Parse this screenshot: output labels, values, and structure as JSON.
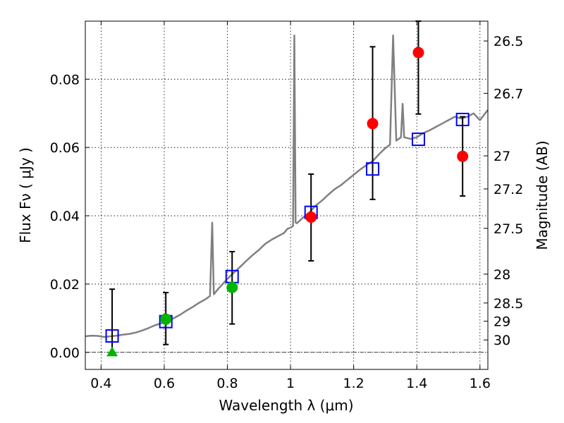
{
  "chart_data": {
    "type": "scatter",
    "xlabel": "Wavelength  λ (μm)",
    "ylabel_left": "Flux  Fν  ( μJy )",
    "ylabel_right": "Magnitude (AB)",
    "xlim": [
      0.35,
      1.625
    ],
    "ylim": [
      -0.005,
      0.097
    ],
    "xticks": [
      {
        "value": 0.4,
        "label": "0.4"
      },
      {
        "value": 0.6,
        "label": "0.6"
      },
      {
        "value": 0.8,
        "label": "0.8"
      },
      {
        "value": 1.0,
        "label": "1"
      },
      {
        "value": 1.2,
        "label": "1.2"
      },
      {
        "value": 1.4,
        "label": "1.4"
      },
      {
        "value": 1.6,
        "label": "1.6"
      }
    ],
    "yticks": [
      {
        "value": 0.0,
        "label": "0.00"
      },
      {
        "value": 0.02,
        "label": "0.02"
      },
      {
        "value": 0.04,
        "label": "0.04"
      },
      {
        "value": 0.06,
        "label": "0.06"
      },
      {
        "value": 0.08,
        "label": "0.08"
      }
    ],
    "magnitude_ticks": [
      {
        "mag": 26.5,
        "label": "26.5"
      },
      {
        "mag": 26.7,
        "label": "26.7"
      },
      {
        "mag": 27.0,
        "label": "27"
      },
      {
        "mag": 27.2,
        "label": "27.2"
      },
      {
        "mag": 27.5,
        "label": "27.5"
      },
      {
        "mag": 28.0,
        "label": "28"
      },
      {
        "mag": 28.5,
        "label": "28.5"
      },
      {
        "mag": 29.0,
        "label": "29"
      },
      {
        "mag": 30.0,
        "label": "30"
      }
    ],
    "grid": true,
    "template_spectrum": {
      "color": "#808080",
      "points": [
        [
          0.35,
          0.0047
        ],
        [
          0.37,
          0.0049
        ],
        [
          0.39,
          0.0048
        ],
        [
          0.41,
          0.0045
        ],
        [
          0.43,
          0.0047
        ],
        [
          0.45,
          0.0049
        ],
        [
          0.47,
          0.0052
        ],
        [
          0.49,
          0.0054
        ],
        [
          0.51,
          0.0058
        ],
        [
          0.53,
          0.0064
        ],
        [
          0.55,
          0.0071
        ],
        [
          0.57,
          0.0079
        ],
        [
          0.59,
          0.0085
        ],
        [
          0.61,
          0.0092
        ],
        [
          0.63,
          0.01
        ],
        [
          0.65,
          0.011
        ],
        [
          0.67,
          0.0122
        ],
        [
          0.69,
          0.0133
        ],
        [
          0.71,
          0.0145
        ],
        [
          0.73,
          0.0155
        ],
        [
          0.745,
          0.0165
        ],
        [
          0.752,
          0.038
        ],
        [
          0.757,
          0.017
        ],
        [
          0.77,
          0.0185
        ],
        [
          0.79,
          0.0205
        ],
        [
          0.8,
          0.0215
        ],
        [
          0.82,
          0.0233
        ],
        [
          0.84,
          0.025
        ],
        [
          0.86,
          0.0268
        ],
        [
          0.88,
          0.0285
        ],
        [
          0.9,
          0.03
        ],
        [
          0.92,
          0.0318
        ],
        [
          0.94,
          0.033
        ],
        [
          0.96,
          0.034
        ],
        [
          0.98,
          0.035
        ],
        [
          0.99,
          0.0362
        ],
        [
          1.0,
          0.0365
        ],
        [
          1.008,
          0.037
        ],
        [
          1.012,
          0.0928
        ],
        [
          1.016,
          0.038
        ],
        [
          1.02,
          0.0378
        ],
        [
          1.04,
          0.0395
        ],
        [
          1.06,
          0.041
        ],
        [
          1.08,
          0.043
        ],
        [
          1.1,
          0.0445
        ],
        [
          1.12,
          0.0462
        ],
        [
          1.14,
          0.0478
        ],
        [
          1.16,
          0.049
        ],
        [
          1.18,
          0.0505
        ],
        [
          1.2,
          0.052
        ],
        [
          1.22,
          0.0535
        ],
        [
          1.24,
          0.0548
        ],
        [
          1.26,
          0.056
        ],
        [
          1.28,
          0.058
        ],
        [
          1.3,
          0.0598
        ],
        [
          1.315,
          0.0608
        ],
        [
          1.325,
          0.0928
        ],
        [
          1.335,
          0.062
        ],
        [
          1.35,
          0.063
        ],
        [
          1.355,
          0.0728
        ],
        [
          1.36,
          0.063
        ],
        [
          1.38,
          0.0625
        ],
        [
          1.4,
          0.063
        ],
        [
          1.42,
          0.0642
        ],
        [
          1.44,
          0.065
        ],
        [
          1.46,
          0.066
        ],
        [
          1.48,
          0.067
        ],
        [
          1.5,
          0.068
        ],
        [
          1.52,
          0.069
        ],
        [
          1.54,
          0.0685
        ],
        [
          1.56,
          0.069
        ],
        [
          1.58,
          0.07
        ],
        [
          1.6,
          0.068
        ],
        [
          1.625,
          0.071
        ]
      ]
    },
    "model_points": {
      "marker": "open-square",
      "color": "#0000ff",
      "points": [
        {
          "x": 0.435,
          "y": 0.0048
        },
        {
          "x": 0.605,
          "y": 0.009
        },
        {
          "x": 0.815,
          "y": 0.0222
        },
        {
          "x": 1.065,
          "y": 0.041
        },
        {
          "x": 1.26,
          "y": 0.0537
        },
        {
          "x": 1.405,
          "y": 0.0624
        },
        {
          "x": 1.545,
          "y": 0.0682
        }
      ]
    },
    "observed_points": [
      {
        "x": 0.435,
        "y": 0.0,
        "err": [
          0.0,
          0.0185
        ],
        "marker": "triangle",
        "color": "#00b400"
      },
      {
        "x": 0.605,
        "y": 0.0097,
        "err": [
          0.0023,
          0.0175
        ],
        "marker": "circle",
        "color": "#00b400"
      },
      {
        "x": 0.815,
        "y": 0.019,
        "err": [
          0.0083,
          0.0295
        ],
        "marker": "circle",
        "color": "#00b400"
      },
      {
        "x": 1.065,
        "y": 0.0396,
        "err": [
          0.0268,
          0.0522
        ],
        "marker": "circle",
        "color": "#ff0000"
      },
      {
        "x": 1.26,
        "y": 0.067,
        "err": [
          0.0448,
          0.0895
        ],
        "marker": "circle",
        "color": "#ff0000"
      },
      {
        "x": 1.405,
        "y": 0.0878,
        "err": [
          0.0698,
          0.097
        ],
        "marker": "circle",
        "color": "#ff0000"
      },
      {
        "x": 1.545,
        "y": 0.0574,
        "err": [
          0.0458,
          0.069
        ],
        "marker": "circle",
        "color": "#ff0000"
      }
    ]
  }
}
